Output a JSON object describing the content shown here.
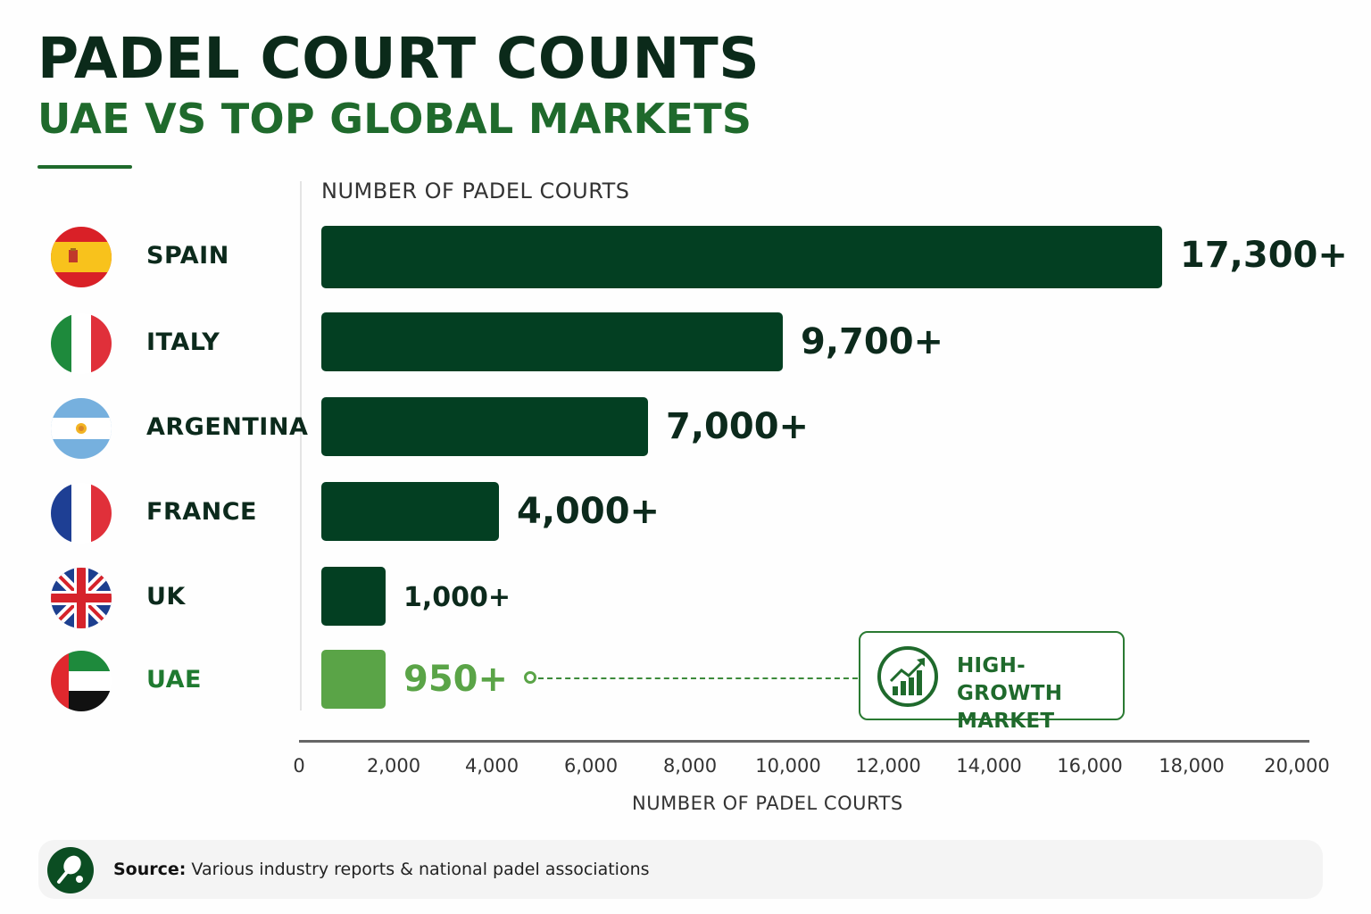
{
  "header": {
    "title": "PADEL COURT COUNTS",
    "subtitle": "UAE VS TOP GLOBAL MARKETS"
  },
  "chart_top_label": "NUMBER OF PADEL COURTS",
  "rows": [
    {
      "country": "SPAIN",
      "flag": "spain-flag-icon",
      "value": 17300,
      "label": "17,300+",
      "highlight": false
    },
    {
      "country": "ITALY",
      "flag": "italy-flag-icon",
      "value": 9700,
      "label": "9,700+",
      "highlight": false
    },
    {
      "country": "ARGENTINA",
      "flag": "argentina-flag-icon",
      "value": 7000,
      "label": "7,000+",
      "highlight": false
    },
    {
      "country": "FRANCE",
      "flag": "france-flag-icon",
      "value": 4000,
      "label": "4,000+",
      "highlight": false
    },
    {
      "country": "UK",
      "flag": "uk-flag-icon",
      "value": 1000,
      "label": "1,000+",
      "highlight": false
    },
    {
      "country": "UAE",
      "flag": "uae-flag-icon",
      "value": 950,
      "label": "950+",
      "highlight": true
    }
  ],
  "callout": {
    "line1": "HIGH-GROWTH",
    "line2": "MARKET",
    "icon": "growth-chart-icon"
  },
  "x_axis": {
    "ticks": [
      "0",
      "2,000",
      "4,000",
      "6,000",
      "8,000",
      "10,000",
      "12,000",
      "14,000",
      "16,000",
      "18,000",
      "20,000"
    ],
    "title": "NUMBER OF PADEL COURTS"
  },
  "source": {
    "label": "Source:",
    "text": " Various industry reports & national padel associations",
    "icon": "padel-racket-icon"
  },
  "colors": {
    "dark_bar": "#033f22",
    "highlight_bar": "#5aa447",
    "title": "#0b2a1a",
    "subtitle": "#1f6a2c"
  },
  "chart_data": {
    "type": "bar",
    "orientation": "horizontal",
    "title": "PADEL COURT COUNTS",
    "subtitle": "UAE VS TOP GLOBAL MARKETS",
    "categories": [
      "Spain",
      "Italy",
      "Argentina",
      "France",
      "UK",
      "UAE"
    ],
    "values": [
      17300,
      9700,
      7000,
      4000,
      1000,
      950
    ],
    "data_labels": [
      "17,300+",
      "9,700+",
      "7,000+",
      "4,000+",
      "1,000+",
      "950+"
    ],
    "xlabel": "NUMBER OF PADEL COURTS",
    "ylabel": "",
    "xlim": [
      0,
      20000
    ],
    "x_ticks": [
      0,
      2000,
      4000,
      6000,
      8000,
      10000,
      12000,
      14000,
      16000,
      18000,
      20000
    ],
    "grid": false,
    "legend": null,
    "highlighted_category": "UAE",
    "annotations": [
      "HIGH-GROWTH MARKET (UAE)"
    ],
    "source": "Various industry reports & national padel associations"
  }
}
